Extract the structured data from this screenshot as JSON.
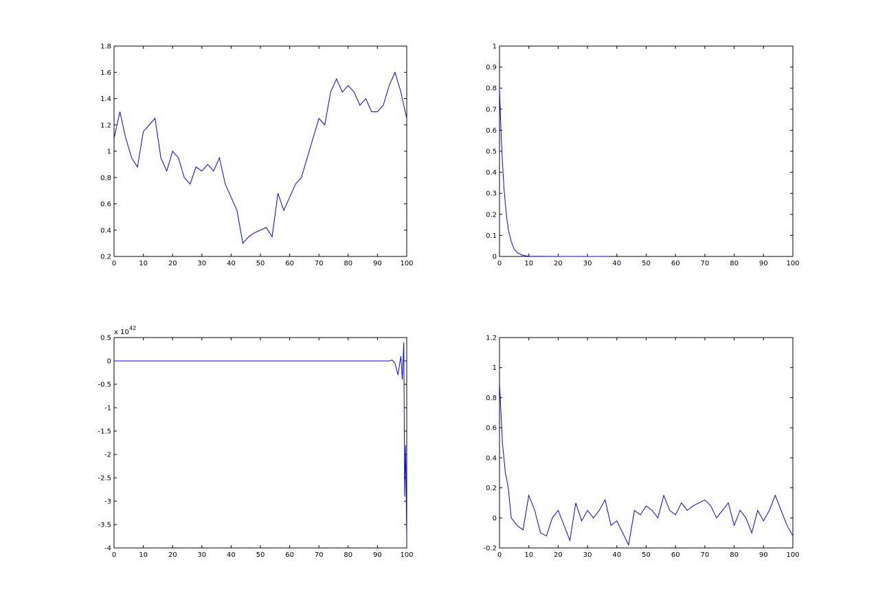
{
  "chart_data": [
    {
      "type": "line",
      "xlim": [
        0,
        100
      ],
      "xticks": [
        0,
        10,
        20,
        30,
        40,
        50,
        60,
        70,
        80,
        90,
        100
      ],
      "ylim": [
        0.2,
        1.8
      ],
      "yticks": [
        0.2,
        0.4,
        0.6,
        0.8,
        1,
        1.2,
        1.4,
        1.6,
        1.8
      ],
      "x": [
        0,
        2,
        4,
        6,
        8,
        10,
        12,
        14,
        16,
        18,
        20,
        22,
        24,
        26,
        28,
        30,
        32,
        34,
        36,
        38,
        40,
        42,
        44,
        46,
        48,
        50,
        52,
        54,
        56,
        58,
        60,
        62,
        64,
        66,
        68,
        70,
        72,
        74,
        76,
        78,
        80,
        82,
        84,
        86,
        88,
        90,
        92,
        94,
        96,
        98,
        100
      ],
      "series": [
        {
          "color": "#0000ff",
          "values": [
            1.1,
            1.3,
            1.1,
            0.95,
            0.88,
            1.15,
            1.2,
            1.25,
            0.95,
            0.85,
            1.0,
            0.95,
            0.8,
            0.75,
            0.88,
            0.85,
            0.9,
            0.85,
            0.95,
            0.75,
            0.65,
            0.55,
            0.3,
            0.35,
            0.38,
            0.4,
            0.42,
            0.35,
            0.68,
            0.55,
            0.65,
            0.75,
            0.8,
            0.95,
            1.1,
            1.25,
            1.2,
            1.45,
            1.55,
            1.45,
            1.5,
            1.45,
            1.35,
            1.4,
            1.3,
            1.3,
            1.35,
            1.5,
            1.6,
            1.45,
            1.25
          ]
        }
      ]
    },
    {
      "type": "line",
      "xlim": [
        0,
        100
      ],
      "xticks": [
        0,
        10,
        20,
        30,
        40,
        50,
        60,
        70,
        80,
        90,
        100
      ],
      "ylim": [
        0,
        1
      ],
      "yticks": [
        0,
        0.1,
        0.2,
        0.3,
        0.4,
        0.5,
        0.6,
        0.7,
        0.8,
        0.9,
        1
      ],
      "x": [
        0,
        0.5,
        1,
        1.5,
        2,
        2.5,
        3,
        4,
        5,
        6,
        8,
        10,
        20,
        30,
        37
      ],
      "series": [
        {
          "color": "#0000ff",
          "values": [
            0.8,
            0.6,
            0.45,
            0.33,
            0.25,
            0.18,
            0.13,
            0.07,
            0.035,
            0.018,
            0.005,
            0.001,
            0,
            0,
            0
          ]
        }
      ]
    },
    {
      "type": "line",
      "xlim": [
        0,
        100
      ],
      "xticks": [
        0,
        10,
        20,
        30,
        40,
        50,
        60,
        70,
        80,
        90,
        100
      ],
      "ylim": [
        -4,
        0.5
      ],
      "yticks": [
        -4,
        -3.5,
        -3,
        -2.5,
        -2,
        -1.5,
        -1,
        -0.5,
        0,
        0.5
      ],
      "y_scale_label": {
        "base": "x 10",
        "exponent": "42"
      },
      "x": [
        0,
        10,
        20,
        30,
        40,
        50,
        60,
        70,
        80,
        90,
        94,
        95,
        96,
        97,
        98,
        98.5,
        99,
        99.3,
        99.6,
        100
      ],
      "series": [
        {
          "color": "#0000ff",
          "values": [
            0,
            0,
            0,
            0,
            0,
            0,
            0,
            0,
            0,
            0,
            0,
            0.02,
            -0.05,
            -0.3,
            0.1,
            -0.4,
            0.4,
            -2.9,
            -1.8,
            -3.8
          ]
        }
      ]
    },
    {
      "type": "line",
      "xlim": [
        0,
        100
      ],
      "xticks": [
        0,
        10,
        20,
        30,
        40,
        50,
        60,
        70,
        80,
        90,
        100
      ],
      "ylim": [
        -0.2,
        1.2
      ],
      "yticks": [
        -0.2,
        0,
        0.2,
        0.4,
        0.6,
        0.8,
        1,
        1.2
      ],
      "x": [
        0,
        1,
        2,
        3,
        4,
        6,
        8,
        10,
        12,
        14,
        16,
        18,
        20,
        22,
        24,
        26,
        28,
        30,
        32,
        34,
        36,
        38,
        40,
        42,
        44,
        46,
        48,
        50,
        52,
        54,
        56,
        58,
        60,
        62,
        64,
        66,
        68,
        70,
        72,
        74,
        76,
        78,
        80,
        82,
        84,
        86,
        88,
        90,
        92,
        94,
        96,
        98,
        100
      ],
      "series": [
        {
          "color": "#0000ff",
          "values": [
            0.9,
            0.5,
            0.3,
            0.2,
            0.0,
            -0.05,
            -0.08,
            0.15,
            0.05,
            -0.1,
            -0.12,
            0.0,
            0.05,
            -0.05,
            -0.15,
            0.1,
            -0.02,
            0.05,
            0.0,
            0.05,
            0.12,
            -0.05,
            -0.02,
            -0.1,
            -0.18,
            0.05,
            0.02,
            0.08,
            0.05,
            0.0,
            0.15,
            0.05,
            0.02,
            0.1,
            0.05,
            0.08,
            0.1,
            0.12,
            0.08,
            0.0,
            0.05,
            0.1,
            -0.05,
            0.05,
            0.0,
            -0.1,
            0.05,
            -0.02,
            0.05,
            0.15,
            0.05,
            -0.05,
            -0.12
          ]
        }
      ]
    }
  ]
}
